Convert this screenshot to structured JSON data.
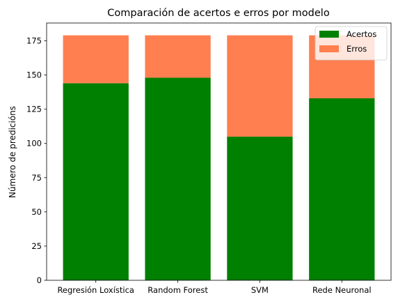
{
  "chart_data": {
    "type": "bar",
    "stacked": true,
    "title": "Comparación de acertos e erros por modelo",
    "xlabel": "",
    "ylabel": "Número de predicións",
    "categories": [
      "Regresión Loxística",
      "Random Forest",
      "SVM",
      "Rede Neuronal"
    ],
    "series": [
      {
        "name": "Acertos",
        "color": "#008000",
        "values": [
          144,
          148,
          105,
          133
        ]
      },
      {
        "name": "Erros",
        "color": "#ff7f50",
        "values": [
          35,
          31,
          74,
          46
        ]
      }
    ],
    "ylim": [
      0,
      188
    ],
    "yticks": [
      0,
      25,
      50,
      75,
      100,
      125,
      150,
      175
    ],
    "grid": false,
    "legend_position": "top-right"
  }
}
